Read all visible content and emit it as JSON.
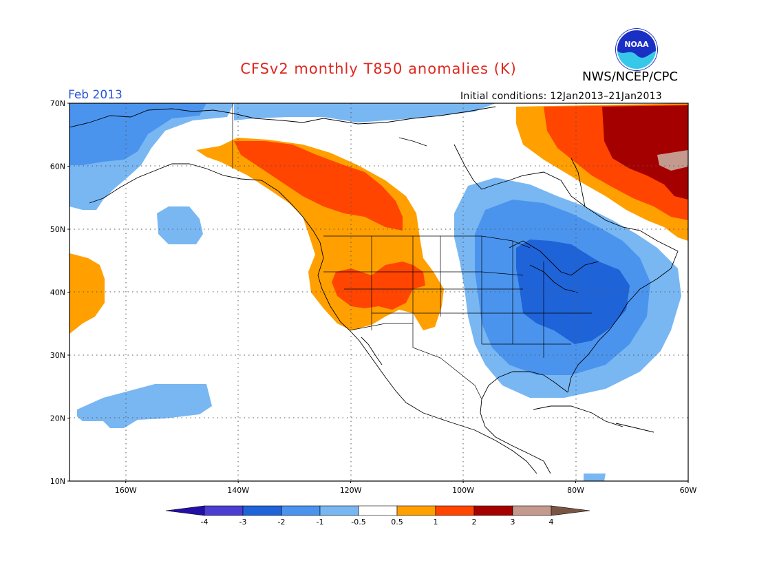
{
  "title": "CFSv2 monthly T850 anomalies (K)",
  "agency": "NWS/NCEP/CPC",
  "valid_month": "Feb 2013",
  "initial_conditions": "Initial conditions: 12Jan2013–21Jan2013",
  "logo": {
    "text": "NOAA"
  },
  "map": {
    "lon_range": [
      -170,
      -60
    ],
    "lat_range": [
      10,
      70
    ],
    "lat_ticks": [
      "10N",
      "20N",
      "30N",
      "40N",
      "50N",
      "60N",
      "70N"
    ],
    "lat_values": [
      10,
      20,
      30,
      40,
      50,
      60,
      70
    ],
    "lon_ticks": [
      "160W",
      "140W",
      "120W",
      "100W",
      "80W",
      "60W"
    ],
    "lon_values": [
      -160,
      -140,
      -120,
      -100,
      -80,
      -60
    ],
    "grid": true
  },
  "colorbar": {
    "labels": [
      "-4",
      "-3",
      "-2",
      "-1",
      "-0.5",
      "0.5",
      "1",
      "2",
      "3",
      "4"
    ],
    "colors": [
      "#240fa6",
      "#4b3fd1",
      "#1f63d8",
      "#4a94ee",
      "#79b7f3",
      "#ffffff",
      "#ffa000",
      "#ff4500",
      "#a50000",
      "#c59a8e",
      "#7a5544"
    ]
  },
  "anomaly_regions": [
    {
      "name": "arctic-west-cool",
      "level": -1
    },
    {
      "name": "arctic-north-cool",
      "level": -0.5
    },
    {
      "name": "north-pacific-cool-patch",
      "level": -0.5
    },
    {
      "name": "hawaii-cool-band",
      "level": -0.5
    },
    {
      "name": "eastern-pacific-warm",
      "level": 0.5
    },
    {
      "name": "western-north-america-warm",
      "level": 0.5
    },
    {
      "name": "alaska-bc-warm-core",
      "level": 1
    },
    {
      "name": "great-basin-warm-core",
      "level": 1
    },
    {
      "name": "eastern-us-cool",
      "level": -0.5
    },
    {
      "name": "eastern-us-cool-mid",
      "level": -1
    },
    {
      "name": "great-lakes-cool-core",
      "level": -2
    },
    {
      "name": "canada-labrador-warm",
      "level": 0.5
    },
    {
      "name": "quebec-warm-mid",
      "level": 1
    },
    {
      "name": "labrador-warm-core",
      "level": 2
    },
    {
      "name": "labrador-hot-spot",
      "level": 3
    },
    {
      "name": "caribbean-cool-patch",
      "level": -0.5
    }
  ]
}
